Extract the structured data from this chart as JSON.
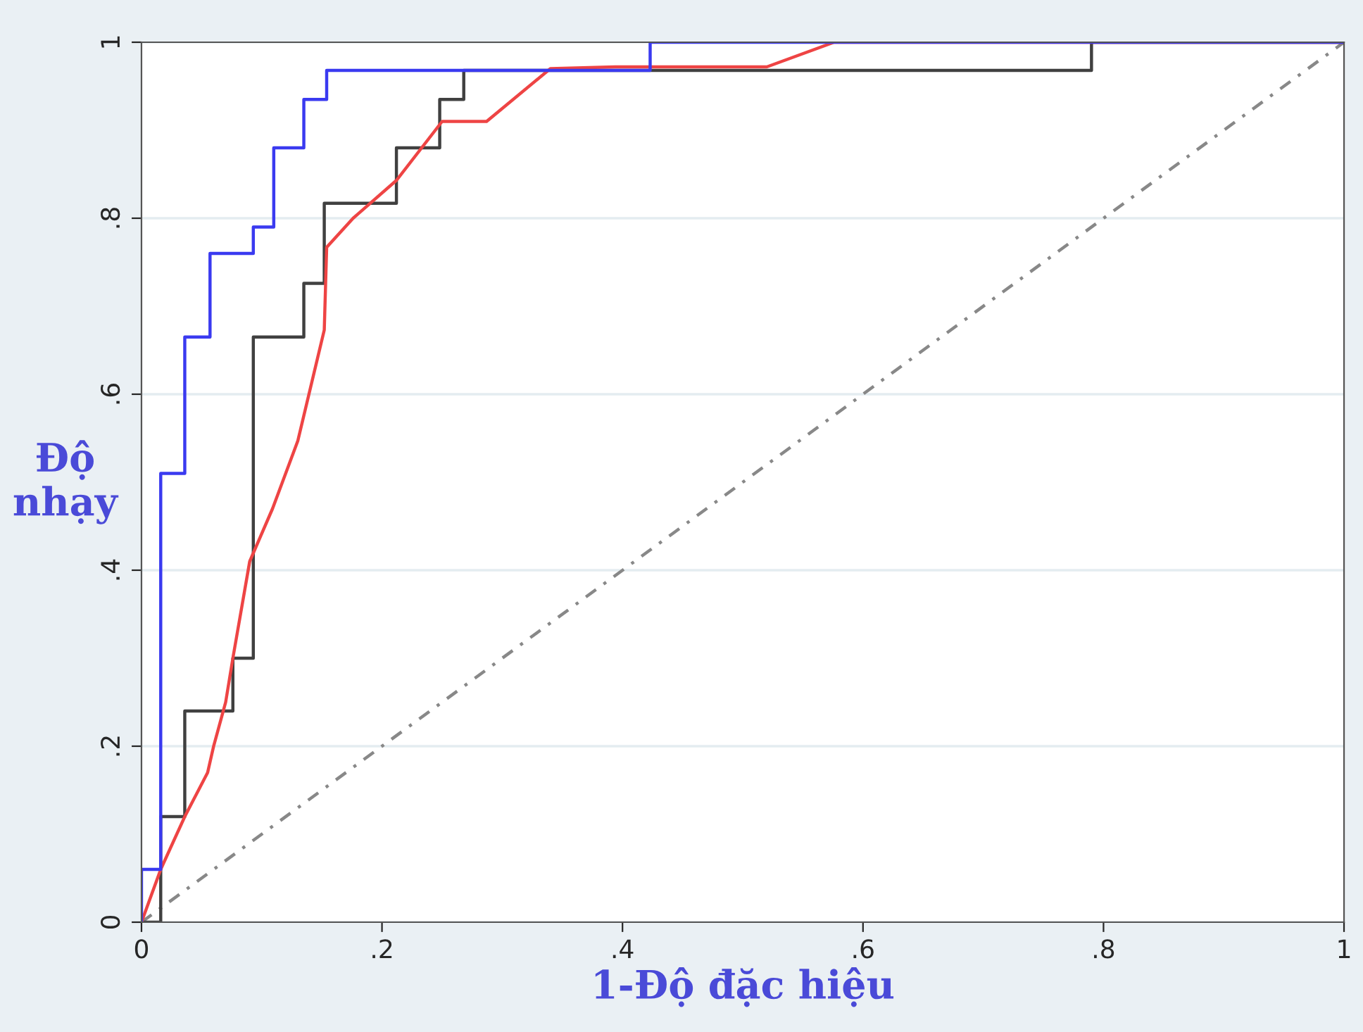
{
  "chart_data": {
    "type": "line",
    "xlabel": "1-Độ đặc hiệu",
    "ylabel": "Độ\nnhạy",
    "xlim": [
      0,
      1
    ],
    "ylim": [
      0,
      1
    ],
    "xticks": [
      0,
      {
        "value": 0.2,
        "label": ".2"
      },
      {
        "value": 0.4,
        "label": ".4"
      },
      {
        "value": 0.6,
        "label": ".6"
      },
      {
        "value": 0.8,
        "label": ".8"
      },
      1
    ],
    "yticks": [
      0,
      {
        "value": 0.2,
        "label": ".2"
      },
      {
        "value": 0.4,
        "label": ".4"
      },
      {
        "value": 0.6,
        "label": ".6"
      },
      {
        "value": 0.8,
        "label": ".8"
      },
      1
    ],
    "grid": "y",
    "marker": "none",
    "line_style": "solid",
    "series": [
      {
        "color": "#888888",
        "line_style": "dashed",
        "x": [
          0,
          1
        ],
        "values": [
          0,
          1
        ]
      },
      {
        "color": "#404040",
        "x": [
          0,
          0.016,
          0.016,
          0.036,
          0.036,
          0.076,
          0.076,
          0.093,
          0.093,
          0.135,
          0.135,
          0.152,
          0.152,
          0.212,
          0.212,
          0.248,
          0.248,
          0.268,
          0.268,
          0.79,
          0.79,
          1
        ],
        "values": [
          0,
          0,
          0.12,
          0.12,
          0.24,
          0.24,
          0.3,
          0.3,
          0.665,
          0.665,
          0.726,
          0.726,
          0.817,
          0.817,
          0.88,
          0.88,
          0.935,
          0.935,
          0.968,
          0.968,
          1,
          1
        ]
      },
      {
        "color": "#ee4444",
        "x": [
          0,
          0.016,
          0.036,
          0.055,
          0.06,
          0.07,
          0.076,
          0.09,
          0.109,
          0.13,
          0.152,
          0.154,
          0.176,
          0.212,
          0.25,
          0.287,
          0.34,
          0.394,
          0.52,
          0.576,
          1
        ],
        "values": [
          0,
          0.06,
          0.12,
          0.17,
          0.2,
          0.25,
          0.3,
          0.41,
          0.47,
          0.547,
          0.673,
          0.767,
          0.8,
          0.843,
          0.91,
          0.91,
          0.97,
          0.972,
          0.972,
          1,
          1
        ]
      },
      {
        "color": "#3a3af0",
        "x": [
          0,
          0,
          0.016,
          0.016,
          0.036,
          0.036,
          0.057,
          0.057,
          0.093,
          0.093,
          0.11,
          0.11,
          0.135,
          0.135,
          0.154,
          0.154,
          0.423,
          0.423,
          1
        ],
        "values": [
          0,
          0.06,
          0.06,
          0.51,
          0.51,
          0.665,
          0.665,
          0.76,
          0.76,
          0.79,
          0.79,
          0.88,
          0.88,
          0.935,
          0.935,
          0.968,
          0.968,
          1,
          1
        ]
      }
    ]
  }
}
